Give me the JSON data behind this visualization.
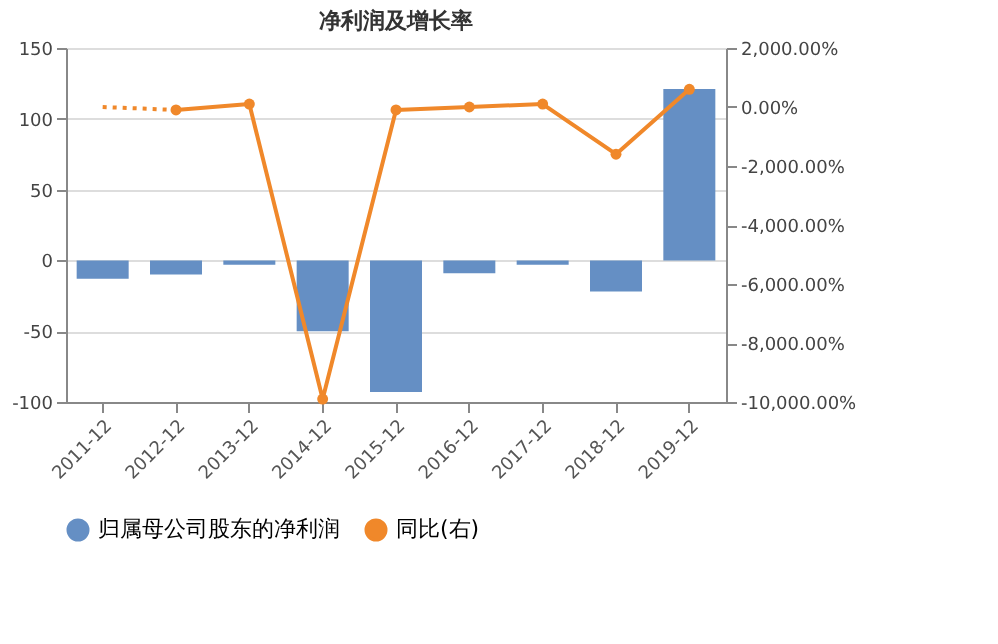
{
  "chart_data": {
    "type": "bar",
    "title": "净利润及增长率",
    "categories": [
      "2011-12",
      "2012-12",
      "2013-12",
      "2014-12",
      "2015-12",
      "2016-12",
      "2017-12",
      "2018-12",
      "2019-12"
    ],
    "series": [
      {
        "name": "归属母公司股东的净利润",
        "color": "#658fc4",
        "values": [
          -13,
          -10,
          -3,
          -50,
          -93,
          -9,
          -3,
          -22,
          121
        ]
      },
      {
        "name": "同比(右)",
        "type": "line",
        "axis": "y2",
        "color": "#f0882a",
        "marker": "circle",
        "line_style": "solid",
        "values": [
          null,
          -100,
          100,
          -9900,
          -100,
          0,
          100,
          -1600,
          600
        ]
      },
      {
        "type": "line",
        "axis": "y2",
        "color": "#f0882a",
        "line_style": "dotted",
        "values": [
          0,
          -100,
          null,
          null,
          null,
          null,
          null,
          null,
          null
        ]
      }
    ],
    "ylim": [
      -100,
      150
    ],
    "yticks": [
      -100,
      -50,
      0,
      50,
      100,
      150
    ],
    "y2lim": [
      -10000,
      2000
    ],
    "y2ticks": [
      {
        "value": -10000,
        "label": "-10,000.00%"
      },
      {
        "value": -8000,
        "label": "-8,000.00%"
      },
      {
        "value": -6000,
        "label": "-6,000.00%"
      },
      {
        "value": -4000,
        "label": "-4,000.00%"
      },
      {
        "value": -2000,
        "label": "-2,000.00%"
      },
      {
        "value": 0,
        "label": "0.00%"
      },
      {
        "value": 2000,
        "label": "2,000.00%"
      }
    ],
    "grid": "y",
    "legend": "bottom"
  }
}
